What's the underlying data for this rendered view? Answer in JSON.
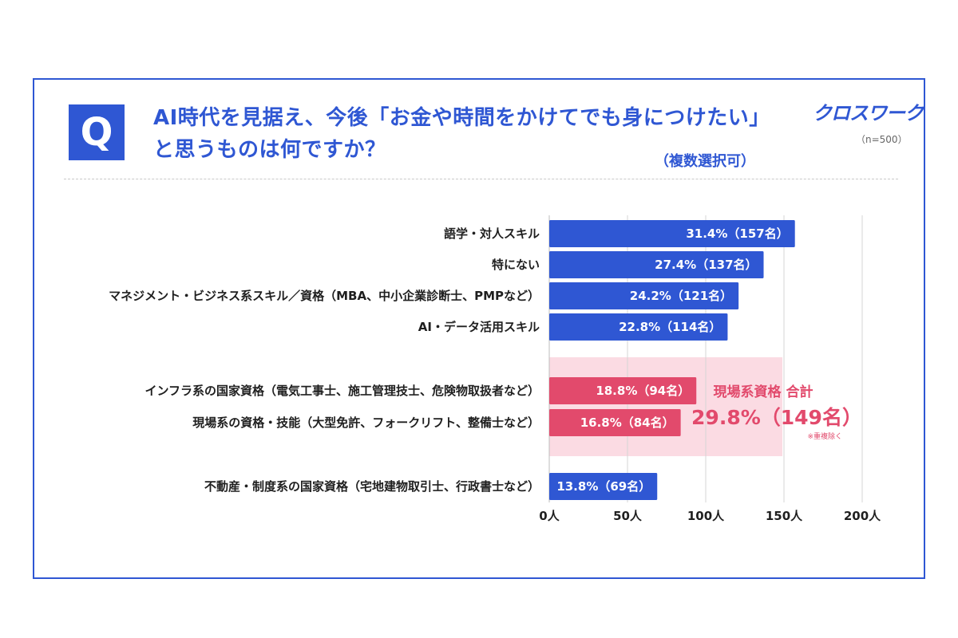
{
  "question": {
    "badge": "Q",
    "line1": "AI時代を見据え、今後「お金や時間をかけてでも身につけたい」",
    "line2": "と思うものは何ですか？",
    "note": "（複数選択可）"
  },
  "brand": {
    "logo": "クロスワーク",
    "sample": "（n=500）"
  },
  "colors": {
    "accent": "#2f57d3",
    "highlight": "#e24a6c",
    "highlight_bg": "#fbdbe3",
    "grid": "#d4d4d4"
  },
  "chart_data": {
    "type": "bar",
    "orientation": "horizontal",
    "categories": [
      "語学・対人スキル",
      "特にない",
      "マネジメント・ビジネス系スキル／資格（MBA、中小企業診断士、PMPなど）",
      "AI・データ活用スキル",
      "インフラ系の国家資格（電気工事士、施工管理技士、危険物取扱者など）",
      "現場系の資格・技能（大型免許、フォークリフト、整備士など）",
      "不動産・制度系の国家資格（宅地建物取引士、行政書士など）"
    ],
    "values": [
      157,
      137,
      121,
      114,
      94,
      84,
      69
    ],
    "bar_labels": [
      "31.4%（157名）",
      "27.4%（137名）",
      "24.2%（121名）",
      "22.8%（114名）",
      "18.8%（94名）",
      "16.8%（84名）",
      "13.8%（69名）"
    ],
    "highlighted": [
      false,
      false,
      false,
      false,
      true,
      true,
      false
    ],
    "x_ticks": [
      "0人",
      "50人",
      "100人",
      "150人",
      "200人"
    ],
    "x_tick_values": [
      0,
      50,
      100,
      150,
      200
    ],
    "xlim": [
      0,
      200
    ],
    "grid": true,
    "highlight_group": {
      "title": "現場系資格 合計",
      "total": "29.8%（149名）",
      "footnote": "※重複除く",
      "value": 149
    }
  }
}
